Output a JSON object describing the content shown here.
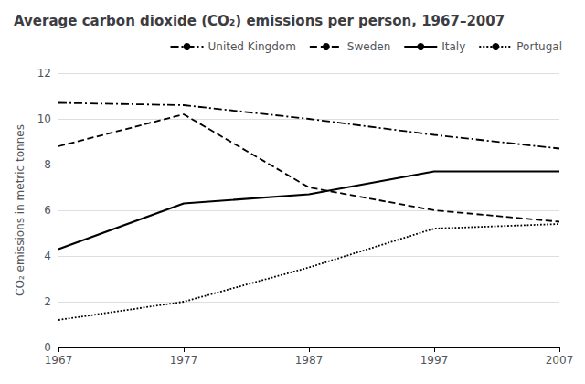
{
  "chart_data": {
    "type": "line",
    "title": "Average carbon dioxide (CO₂) emissions per person, 1967–2007",
    "ylabel": "CO₂ emissions in metric tonnes",
    "x": [
      1967,
      1977,
      1987,
      1997,
      2007
    ],
    "series": [
      {
        "name": "United Kingdom",
        "color": "#000000",
        "line_style": "dashdot",
        "values": [
          10.7,
          10.6,
          10.0,
          9.3,
          8.7
        ]
      },
      {
        "name": "Sweden",
        "color": "#000000",
        "line_style": "dashed",
        "values": [
          8.8,
          10.2,
          7.0,
          6.0,
          5.5
        ]
      },
      {
        "name": "Italy",
        "color": "#000000",
        "line_style": "solid",
        "values": [
          4.3,
          6.3,
          6.7,
          7.7,
          7.7
        ]
      },
      {
        "name": "Portugal",
        "color": "#000000",
        "line_style": "dotted",
        "values": [
          1.2,
          2.0,
          3.5,
          5.2,
          5.4
        ]
      }
    ],
    "xlim": [
      1967,
      2007
    ],
    "xticks": [
      1967,
      1977,
      1987,
      1997,
      2007
    ],
    "ylim": [
      0,
      12
    ],
    "yticks": [
      0,
      2,
      4,
      6,
      8,
      10,
      12
    ],
    "grid": true,
    "legend": "upper right"
  }
}
